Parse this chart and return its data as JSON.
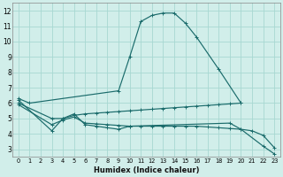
{
  "xlabel": "Humidex (Indice chaleur)",
  "bg_color": "#d1eeea",
  "grid_color": "#a8d8d2",
  "line_color": "#1a6b6b",
  "xlim": [
    -0.5,
    23.5
  ],
  "ylim": [
    2.5,
    12.5
  ],
  "lines": [
    {
      "x": [
        0,
        1,
        9,
        10,
        11,
        12,
        13,
        14,
        15,
        16,
        18,
        20
      ],
      "y": [
        6.3,
        6.0,
        6.8,
        9.0,
        11.3,
        11.7,
        11.85,
        11.85,
        11.2,
        10.3,
        8.2,
        6.0
      ]
    },
    {
      "x": [
        0,
        3,
        4,
        5,
        6,
        7,
        8,
        9,
        10,
        19,
        20,
        22,
        23
      ],
      "y": [
        6.2,
        4.2,
        5.0,
        5.3,
        4.6,
        4.5,
        4.4,
        4.3,
        4.5,
        4.7,
        4.3,
        3.2,
        2.7
      ]
    },
    {
      "x": [
        0,
        3,
        4,
        5,
        6,
        7,
        8,
        9,
        10,
        11,
        12,
        13,
        14,
        15,
        16,
        17,
        18,
        19,
        20
      ],
      "y": [
        6.0,
        5.0,
        5.0,
        5.2,
        5.3,
        5.35,
        5.4,
        5.45,
        5.5,
        5.55,
        5.6,
        5.65,
        5.7,
        5.75,
        5.8,
        5.85,
        5.9,
        5.95,
        6.0
      ]
    },
    {
      "x": [
        0,
        3,
        4,
        5,
        6,
        7,
        8,
        9,
        10,
        11,
        12,
        13,
        14,
        15,
        16,
        17,
        18,
        19,
        20,
        21,
        22,
        23
      ],
      "y": [
        5.9,
        4.6,
        4.9,
        5.1,
        4.7,
        4.65,
        4.6,
        4.55,
        4.5,
        4.5,
        4.5,
        4.5,
        4.5,
        4.5,
        4.5,
        4.45,
        4.4,
        4.35,
        4.3,
        4.2,
        3.9,
        3.1
      ]
    }
  ]
}
